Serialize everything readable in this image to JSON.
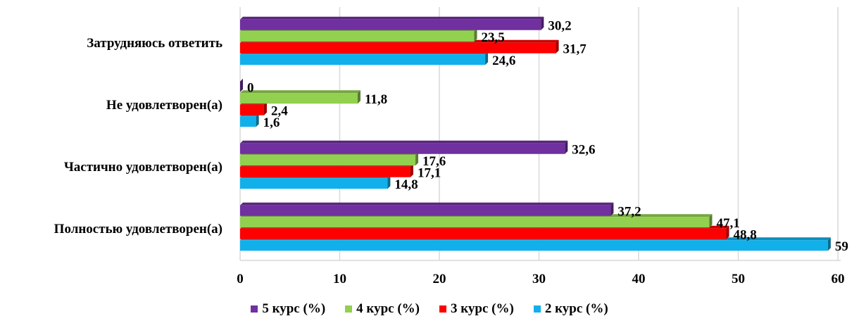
{
  "chart_data": {
    "type": "bar",
    "orientation": "horizontal",
    "categories": [
      "Полностью удовлетворен(а)",
      "Частично удовлетворен(а)",
      "Не удовлетворен(а)",
      "Затрудняюсь ответить"
    ],
    "series": [
      {
        "name": "2 курс (%)",
        "color": "#12b0ea",
        "values": [
          59,
          14.8,
          1.6,
          24.6
        ],
        "labels": [
          "59",
          "14,8",
          "1,6",
          "24,6"
        ]
      },
      {
        "name": "3 курс (%)",
        "color": "#ff0000",
        "values": [
          48.8,
          17.1,
          2.4,
          31.7
        ],
        "labels": [
          "48,8",
          "17,1",
          "2,4",
          "31,7"
        ]
      },
      {
        "name": "4 курс (%)",
        "color": "#92d050",
        "values": [
          47.1,
          17.6,
          11.8,
          23.5
        ],
        "labels": [
          "47,1",
          "17,6",
          "11,8",
          "23,5"
        ]
      },
      {
        "name": "5 курс (%)",
        "color": "#7030a0",
        "values": [
          37.2,
          32.6,
          0,
          30.2
        ],
        "labels": [
          "37,2",
          "32,6",
          "0",
          "30,2"
        ]
      }
    ],
    "legend_order": [
      "5 курс (%)",
      "4 курс (%)",
      "3 курс (%)",
      "2 курс (%)"
    ],
    "xlim": [
      0,
      60
    ],
    "xticks": [
      "0",
      "10",
      "20",
      "30",
      "40",
      "50",
      "60"
    ],
    "grid": true,
    "legend_position": "bottom"
  }
}
